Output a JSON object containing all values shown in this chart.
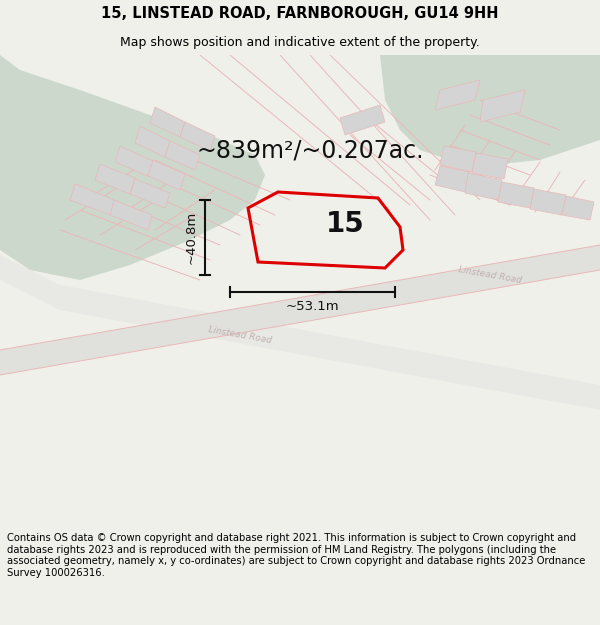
{
  "title_line1": "15, LINSTEAD ROAD, FARNBOROUGH, GU14 9HH",
  "title_line2": "Map shows position and indicative extent of the property.",
  "area_label": "~839m²/~0.207ac.",
  "width_label": "~53.1m",
  "height_label": "~40.8m",
  "property_number": "15",
  "footer_text": "Contains OS data © Crown copyright and database right 2021. This information is subject to Crown copyright and database rights 2023 and is reproduced with the permission of HM Land Registry. The polygons (including the associated geometry, namely x, y co-ordinates) are subject to Crown copyright and database rights 2023 Ordnance Survey 100026316.",
  "bg_color": "#f0f0eb",
  "map_bg": "#ffffff",
  "green_color": "#cdd8cc",
  "road_line_color": "#e8b8b8",
  "gray_fill": "#d4d4d4",
  "road_fill_color": "#e8e8e4",
  "property_outline_color": "#dd0000",
  "dim_line_color": "#111111",
  "title_fontsize": 10.5,
  "subtitle_fontsize": 9,
  "area_fontsize": 17,
  "label_fontsize": 9.5,
  "number_fontsize": 20,
  "footer_fontsize": 7.2,
  "road_lw": 0.7,
  "prop_lw": 2.2
}
